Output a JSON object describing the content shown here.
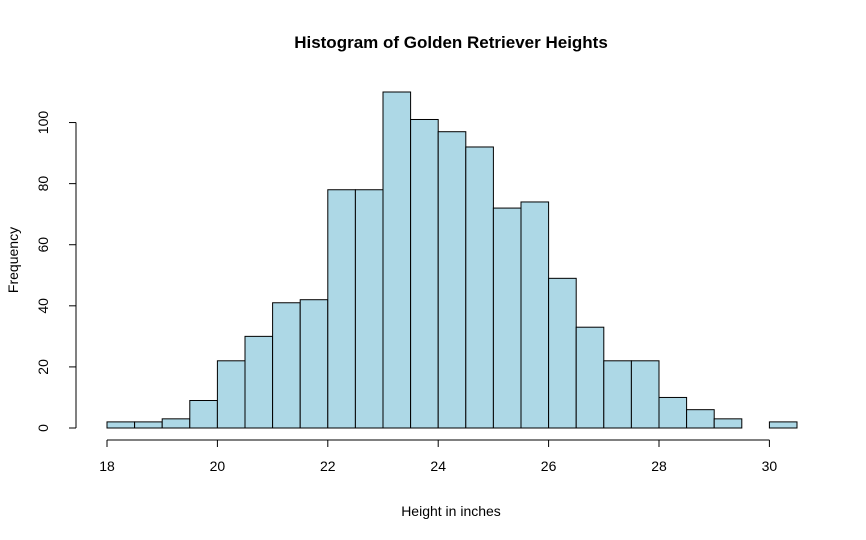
{
  "chart_data": {
    "type": "bar",
    "title": "Histogram of Golden Retriever Heights",
    "xlabel": "Height in inches",
    "ylabel": "Frequency",
    "bar_color": "#add8e6",
    "bin_width": 0.5,
    "bin_starts": [
      18,
      18.5,
      19,
      19.5,
      20,
      20.5,
      21,
      21.5,
      22,
      22.5,
      23,
      23.5,
      24,
      24.5,
      25,
      25.5,
      26,
      26.5,
      27,
      27.5,
      28,
      28.5,
      29,
      29.5,
      30
    ],
    "values": [
      2,
      2,
      3,
      9,
      22,
      30,
      41,
      42,
      78,
      78,
      110,
      101,
      97,
      92,
      72,
      74,
      49,
      33,
      22,
      22,
      10,
      6,
      3,
      0,
      2
    ],
    "xlim": [
      18,
      30.5
    ],
    "ylim": [
      0,
      110
    ],
    "x_ticks": [
      18,
      20,
      22,
      24,
      26,
      28,
      30
    ],
    "y_ticks": [
      0,
      20,
      40,
      60,
      80,
      100
    ],
    "grid": false
  }
}
